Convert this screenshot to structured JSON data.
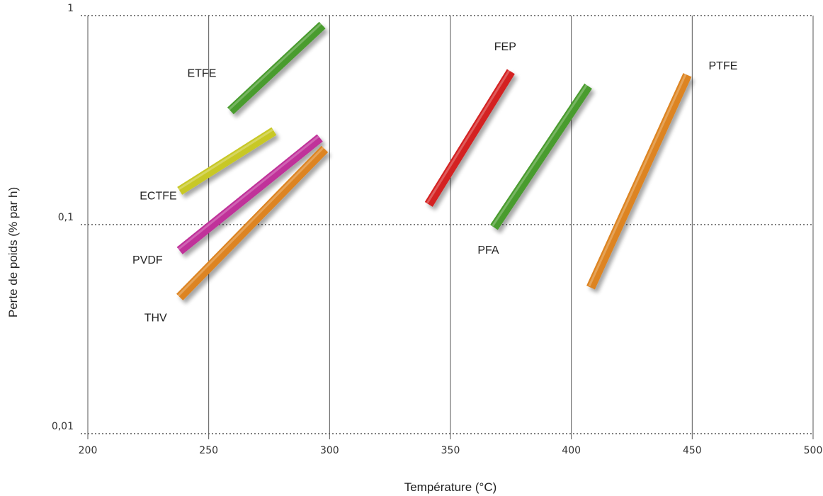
{
  "chart_data": {
    "type": "line",
    "xlabel": "Température (°C)",
    "ylabel": "Perte de poids (% par h)",
    "xlim": [
      200,
      500
    ],
    "ylim": [
      0.01,
      1
    ],
    "y_scale": "log",
    "x_ticks": [
      "200",
      "250",
      "300",
      "350",
      "400",
      "450",
      "500"
    ],
    "y_ticks": [
      {
        "value": 0.01,
        "label": "0,01"
      },
      {
        "value": 0.1,
        "label": "0,1"
      },
      {
        "value": 1,
        "label": "1"
      }
    ],
    "grid": {
      "vertical": "solid",
      "horizontal": "dotted"
    },
    "series": [
      {
        "name": "ETFE",
        "color": "#4a9c2e",
        "points": [
          [
            259,
            0.35
          ],
          [
            297,
            0.9
          ]
        ]
      },
      {
        "name": "ECTFE",
        "color": "#c8c828",
        "points": [
          [
            238,
            0.145
          ],
          [
            277,
            0.28
          ]
        ]
      },
      {
        "name": "PVDF",
        "color": "#c0309a",
        "points": [
          [
            238,
            0.075
          ],
          [
            296,
            0.26
          ]
        ]
      },
      {
        "name": "THV",
        "color": "#dd8420",
        "points": [
          [
            238,
            0.045
          ],
          [
            298,
            0.23
          ]
        ]
      },
      {
        "name": "FEP",
        "color": "#d42424",
        "points": [
          [
            341,
            0.125
          ],
          [
            375,
            0.54
          ]
        ]
      },
      {
        "name": "PFA",
        "color": "#4a9c2e",
        "points": [
          [
            368,
            0.097
          ],
          [
            407,
            0.46
          ]
        ]
      },
      {
        "name": "PTFE",
        "color": "#dd8420",
        "points": [
          [
            408,
            0.05
          ],
          [
            448,
            0.52
          ]
        ]
      }
    ]
  }
}
